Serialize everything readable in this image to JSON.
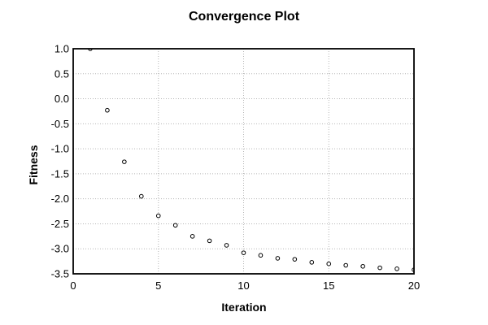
{
  "chart_data": {
    "type": "scatter",
    "title": "Convergence Plot",
    "xlabel": "Iteration",
    "ylabel": "Fitness",
    "x": [
      1,
      2,
      3,
      4,
      5,
      6,
      7,
      8,
      9,
      10,
      11,
      12,
      13,
      14,
      15,
      16,
      17,
      18,
      19,
      20
    ],
    "y": [
      1.0,
      -0.23,
      -1.26,
      -1.95,
      -2.34,
      -2.53,
      -2.75,
      -2.84,
      -2.93,
      -3.08,
      -3.13,
      -3.19,
      -3.21,
      -3.27,
      -3.3,
      -3.33,
      -3.35,
      -3.38,
      -3.4,
      -3.42
    ],
    "xlim": [
      0,
      20
    ],
    "ylim": [
      -3.5,
      1.0
    ],
    "xticks": [
      0,
      5,
      10,
      15,
      20
    ],
    "yticks": [
      1.0,
      0.5,
      0.0,
      -0.5,
      -1.0,
      -1.5,
      -2.0,
      -2.5,
      -3.0,
      -3.5
    ],
    "grid": true,
    "grid_style": "dotted",
    "legend": "none",
    "marker": "open-circle",
    "colors": {
      "background": "#ffffff",
      "axis": "#000000",
      "grid": "#b5b5b5",
      "text": "#000000",
      "marker_stroke": "#000000",
      "marker_fill": "#ffffff"
    }
  }
}
